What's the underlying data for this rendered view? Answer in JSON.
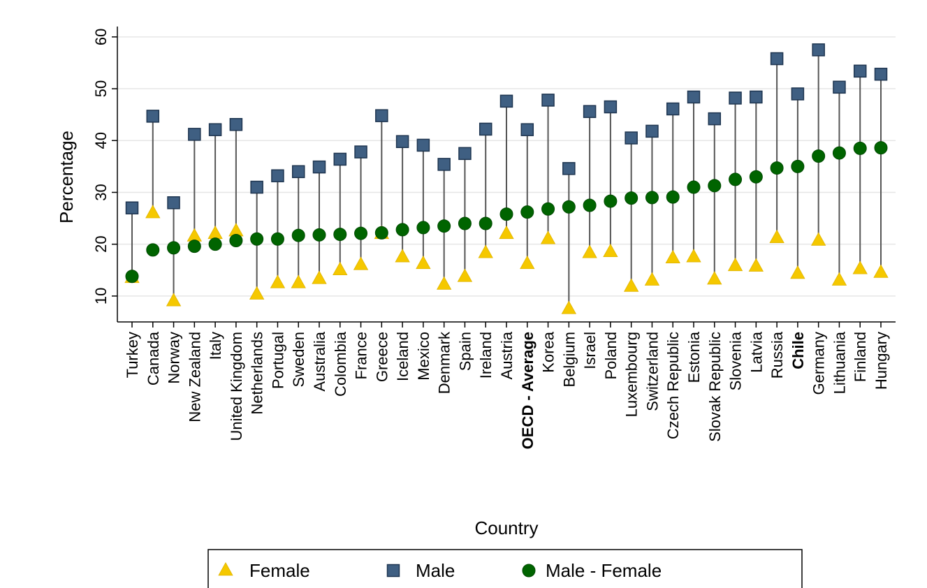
{
  "chart_data": {
    "type": "scatter",
    "xlabel": "Country",
    "ylabel": "Percentage",
    "ylim": [
      5,
      62
    ],
    "yticks": [
      10,
      20,
      30,
      40,
      50,
      60
    ],
    "grid": true,
    "legend_position": "bottom",
    "categories": [
      "Turkey",
      "Canada",
      "Norway",
      "New Zealand",
      "Italy",
      "United Kingdom",
      "Netherlands",
      "Portugal",
      "Sweden",
      "Australia",
      "Colombia",
      "France",
      "Greece",
      "Iceland",
      "Mexico",
      "Denmark",
      "Spain",
      "Ireland",
      "Austria",
      "OECD - Average",
      "Korea",
      "Belgium",
      "Israel",
      "Poland",
      "Luxembourg",
      "Switzerland",
      "Czech Republic",
      "Estonia",
      "Slovak Republic",
      "Slovenia",
      "Latvia",
      "Russia",
      "Chile",
      "Germany",
      "Lithuania",
      "Finland",
      "Hungary"
    ],
    "highlighted_categories": [
      "OECD - Average",
      "Chile"
    ],
    "series": [
      {
        "name": "Female",
        "marker": "triangle",
        "color": "#f5c800",
        "values": [
          13.5,
          26,
          9,
          21.5,
          22,
          22.5,
          10.3,
          12.5,
          12.5,
          13.3,
          15,
          16,
          22,
          17.5,
          16.2,
          12.2,
          13.7,
          18.3,
          22,
          16.2,
          21,
          7.5,
          18.3,
          18.5,
          11.8,
          13,
          17.3,
          17.5,
          13.2,
          15.8,
          15.7,
          21.2,
          14.3,
          20.7,
          13,
          15.2,
          14.5
        ]
      },
      {
        "name": "Male",
        "marker": "square",
        "color": "#3f5f82",
        "values": [
          27,
          44.7,
          28,
          41.2,
          42.1,
          43.1,
          31,
          33.2,
          34,
          34.9,
          36.4,
          37.8,
          44.8,
          39.8,
          39.1,
          35.4,
          37.5,
          42.2,
          47.6,
          42.1,
          47.8,
          34.6,
          45.6,
          46.5,
          40.5,
          41.8,
          46.1,
          48.4,
          44.2,
          48.2,
          48.4,
          55.8,
          49,
          57.5,
          50.3,
          53.4,
          52.8
        ]
      },
      {
        "name": "Male - Female",
        "marker": "circle",
        "color": "#006400",
        "values": [
          13.8,
          18.9,
          19.3,
          19.6,
          20.0,
          20.7,
          21.0,
          21.0,
          21.7,
          21.8,
          21.9,
          22.1,
          22.2,
          22.8,
          23.2,
          23.5,
          24.0,
          24.0,
          25.8,
          26.2,
          26.8,
          27.2,
          27.5,
          28.3,
          28.9,
          29.0,
          29.1,
          31.0,
          31.3,
          32.5,
          33.0,
          34.7,
          35.0,
          37.0,
          37.6,
          38.5,
          38.6
        ]
      }
    ]
  }
}
